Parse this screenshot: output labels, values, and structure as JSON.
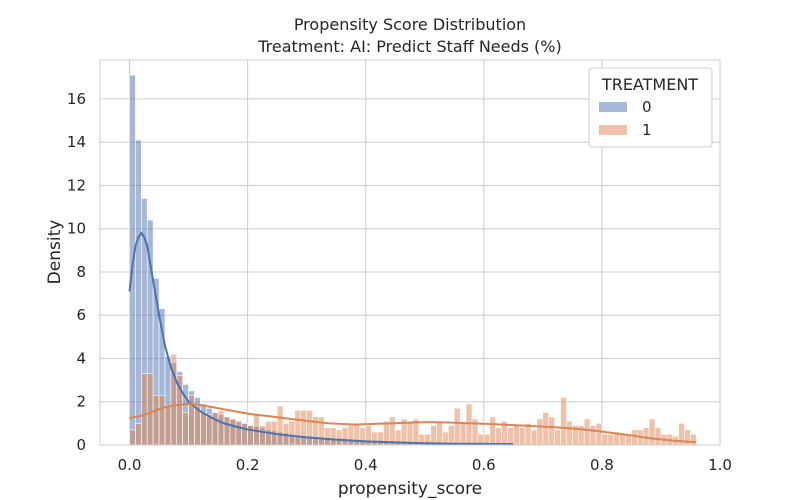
{
  "chart_data": {
    "type": "bar",
    "title": "Propensity Score Distribution",
    "subtitle": "Treatment: AI: Predict Staff Needs (%)",
    "xlabel": "propensity_score",
    "ylabel": "Density",
    "xlim": [
      -0.05,
      1.0
    ],
    "ylim": [
      0,
      17.8
    ],
    "xticks": [
      "0.0",
      "0.2",
      "0.4",
      "0.6",
      "0.8",
      "1.0"
    ],
    "xtick_values": [
      0.0,
      0.2,
      0.4,
      0.6,
      0.8,
      1.0
    ],
    "yticks": [
      "0",
      "2",
      "4",
      "6",
      "8",
      "10",
      "12",
      "14",
      "16"
    ],
    "ytick_values": [
      0,
      2,
      4,
      6,
      8,
      10,
      12,
      14,
      16
    ],
    "grid": true,
    "legend": {
      "title": "TREATMENT",
      "placement": "top-right"
    },
    "bin_start": 0.0,
    "bin_width": 0.01,
    "series": [
      {
        "name": "0",
        "color": "#4c72b0",
        "values": [
          17.1,
          14.1,
          11.4,
          10.4,
          7.7,
          6.3,
          4.1,
          3.8,
          3.4,
          2.8,
          2.5,
          2.2,
          1.9,
          1.7,
          1.5,
          1.4,
          1.3,
          1.2,
          1.1,
          1.0,
          0.9,
          0.85,
          0.8,
          0.7,
          0.65,
          0.6,
          0.55,
          0.5,
          0.45,
          0.42,
          0.4,
          0.38,
          0.35,
          0.32,
          0.3,
          0.28,
          0.26,
          0.24,
          0.22,
          0.2,
          0.19,
          0.18,
          0.17,
          0.16,
          0.15,
          0.14,
          0.13,
          0.12,
          0.11,
          0.1,
          0.09,
          0.08,
          0.07,
          0.06,
          0.05,
          0.05,
          0.04,
          0.04,
          0.03,
          0.03,
          0.03,
          0.02,
          0.02,
          0.02,
          0.02,
          0.01,
          0.01,
          0.01,
          0.01,
          0.01,
          0.01,
          0.01,
          0.0,
          0.0,
          0.0,
          0.0,
          0.0,
          0.0,
          0.0,
          0.0,
          0.0,
          0.0,
          0.0,
          0.0,
          0.0,
          0.0,
          0.0,
          0.0,
          0.0,
          0.0,
          0.0,
          0.0,
          0.0,
          0.0,
          0.0,
          0.0
        ],
        "kde": [
          [
            0.0,
            7.1
          ],
          [
            0.005,
            8.3
          ],
          [
            0.01,
            9.2
          ],
          [
            0.015,
            9.6
          ],
          [
            0.02,
            9.8
          ],
          [
            0.025,
            9.6
          ],
          [
            0.03,
            9.2
          ],
          [
            0.035,
            8.4
          ],
          [
            0.04,
            7.6
          ],
          [
            0.05,
            6.0
          ],
          [
            0.06,
            4.6
          ],
          [
            0.07,
            3.6
          ],
          [
            0.08,
            2.9
          ],
          [
            0.09,
            2.4
          ],
          [
            0.1,
            2.0
          ],
          [
            0.12,
            1.55
          ],
          [
            0.14,
            1.25
          ],
          [
            0.16,
            1.0
          ],
          [
            0.18,
            0.85
          ],
          [
            0.2,
            0.72
          ],
          [
            0.25,
            0.5
          ],
          [
            0.3,
            0.35
          ],
          [
            0.35,
            0.25
          ],
          [
            0.4,
            0.17
          ],
          [
            0.45,
            0.12
          ],
          [
            0.5,
            0.08
          ],
          [
            0.55,
            0.06
          ],
          [
            0.6,
            0.05
          ],
          [
            0.65,
            0.04
          ]
        ]
      },
      {
        "name": "1",
        "color": "#dd8452",
        "values": [
          0.7,
          1.0,
          3.3,
          3.3,
          2.3,
          2.3,
          1.8,
          4.2,
          3.2,
          1.5,
          2.3,
          1.8,
          1.5,
          1.4,
          1.5,
          1.6,
          1.3,
          1.2,
          1.1,
          1.0,
          0.9,
          1.4,
          0.9,
          1.1,
          1.1,
          1.8,
          1.0,
          1.1,
          1.6,
          1.6,
          1.6,
          1.3,
          1.3,
          0.8,
          0.8,
          0.7,
          0.8,
          0.9,
          1.0,
          0.8,
          0.9,
          0.6,
          0.6,
          1.1,
          1.3,
          0.7,
          1.2,
          1.1,
          1.2,
          0.5,
          0.5,
          0.9,
          1.1,
          0.6,
          0.9,
          1.7,
          1.0,
          1.9,
          1.2,
          0.5,
          0.5,
          1.3,
          0.8,
          1.1,
          0.8,
          0.9,
          0.8,
          1.0,
          0.7,
          1.2,
          1.5,
          1.3,
          0.7,
          2.2,
          1.1,
          0.9,
          0.9,
          1.2,
          0.9,
          1.0,
          0.5,
          0.5,
          0.6,
          0.5,
          0.5,
          0.7,
          0.7,
          0.8,
          1.2,
          0.8,
          0.5,
          0.5,
          0.4,
          1.0,
          0.7,
          0.5
        ],
        "kde": [
          [
            0.0,
            1.25
          ],
          [
            0.02,
            1.35
          ],
          [
            0.04,
            1.55
          ],
          [
            0.06,
            1.75
          ],
          [
            0.08,
            1.85
          ],
          [
            0.1,
            1.9
          ],
          [
            0.12,
            1.85
          ],
          [
            0.14,
            1.75
          ],
          [
            0.16,
            1.65
          ],
          [
            0.18,
            1.55
          ],
          [
            0.2,
            1.45
          ],
          [
            0.22,
            1.38
          ],
          [
            0.24,
            1.32
          ],
          [
            0.26,
            1.25
          ],
          [
            0.28,
            1.18
          ],
          [
            0.3,
            1.12
          ],
          [
            0.32,
            1.05
          ],
          [
            0.34,
            1.0
          ],
          [
            0.36,
            0.97
          ],
          [
            0.38,
            0.95
          ],
          [
            0.4,
            0.96
          ],
          [
            0.42,
            0.98
          ],
          [
            0.44,
            1.0
          ],
          [
            0.46,
            1.02
          ],
          [
            0.48,
            1.04
          ],
          [
            0.5,
            1.05
          ],
          [
            0.52,
            1.05
          ],
          [
            0.54,
            1.04
          ],
          [
            0.56,
            1.02
          ],
          [
            0.58,
            1.0
          ],
          [
            0.6,
            0.98
          ],
          [
            0.62,
            0.96
          ],
          [
            0.64,
            0.93
          ],
          [
            0.66,
            0.91
          ],
          [
            0.68,
            0.88
          ],
          [
            0.7,
            0.85
          ],
          [
            0.72,
            0.82
          ],
          [
            0.74,
            0.78
          ],
          [
            0.76,
            0.74
          ],
          [
            0.78,
            0.68
          ],
          [
            0.8,
            0.62
          ],
          [
            0.82,
            0.55
          ],
          [
            0.84,
            0.48
          ],
          [
            0.86,
            0.4
          ],
          [
            0.88,
            0.32
          ],
          [
            0.9,
            0.26
          ],
          [
            0.92,
            0.2
          ],
          [
            0.94,
            0.16
          ],
          [
            0.96,
            0.13
          ]
        ]
      }
    ]
  }
}
